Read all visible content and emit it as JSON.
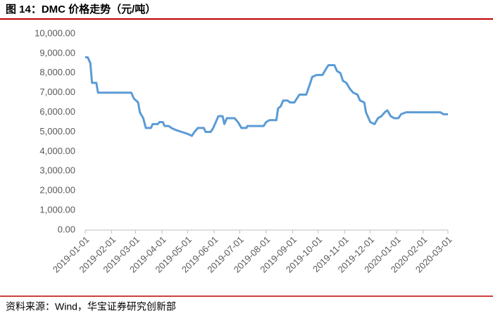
{
  "chart_data": {
    "type": "line",
    "title": "图 14：DMC 价格走势（元/吨）",
    "source": "资料来源：Wind，华宝证券研究创新部",
    "grid": false,
    "x": [
      "2019-01-01",
      "2019-01-04",
      "2019-01-07",
      "2019-01-09",
      "2019-01-14",
      "2019-01-16",
      "2019-02-24",
      "2019-02-27",
      "2019-03-04",
      "2019-03-06",
      "2019-03-10",
      "2019-03-13",
      "2019-03-19",
      "2019-03-21",
      "2019-03-27",
      "2019-03-29",
      "2019-04-02",
      "2019-04-04",
      "2019-04-09",
      "2019-04-12",
      "2019-04-17",
      "2019-04-24",
      "2019-05-01",
      "2019-05-06",
      "2019-05-09",
      "2019-05-13",
      "2019-05-20",
      "2019-05-22",
      "2019-05-28",
      "2019-05-31",
      "2019-06-03",
      "2019-06-06",
      "2019-06-11",
      "2019-06-13",
      "2019-06-16",
      "2019-06-25",
      "2019-06-29",
      "2019-07-03",
      "2019-07-09",
      "2019-07-10",
      "2019-07-29",
      "2019-08-01",
      "2019-08-05",
      "2019-08-13",
      "2019-08-15",
      "2019-08-18",
      "2019-08-21",
      "2019-08-26",
      "2019-08-29",
      "2019-09-03",
      "2019-09-06",
      "2019-09-09",
      "2019-09-17",
      "2019-09-21",
      "2019-09-24",
      "2019-09-29",
      "2019-10-06",
      "2019-10-10",
      "2019-10-13",
      "2019-10-20",
      "2019-10-23",
      "2019-10-27",
      "2019-10-30",
      "2019-11-03",
      "2019-11-07",
      "2019-11-11",
      "2019-11-16",
      "2019-11-19",
      "2019-11-24",
      "2019-11-26",
      "2019-12-01",
      "2019-12-06",
      "2019-12-10",
      "2019-12-14",
      "2019-12-18",
      "2019-12-21",
      "2019-12-25",
      "2019-12-29",
      "2020-01-03",
      "2020-01-06",
      "2020-01-12",
      "2020-02-21",
      "2020-02-25",
      "2020-03-01"
    ],
    "series": [
      {
        "name": "DMC",
        "color": "#5b9bd5",
        "values": [
          8800,
          8800,
          8500,
          7500,
          7500,
          7000,
          7000,
          6700,
          6500,
          6000,
          5700,
          5200,
          5200,
          5400,
          5400,
          5500,
          5500,
          5300,
          5300,
          5200,
          5100,
          5000,
          4900,
          4800,
          5000,
          5200,
          5200,
          5000,
          5000,
          5200,
          5500,
          5800,
          5800,
          5400,
          5700,
          5700,
          5500,
          5200,
          5200,
          5300,
          5300,
          5500,
          5600,
          5600,
          6200,
          6300,
          6600,
          6600,
          6500,
          6500,
          6700,
          6900,
          6900,
          7400,
          7800,
          7900,
          7900,
          8200,
          8400,
          8400,
          8100,
          8000,
          7600,
          7500,
          7200,
          7000,
          6900,
          6600,
          6500,
          6000,
          5500,
          5400,
          5700,
          5800,
          6000,
          6100,
          5800,
          5700,
          5700,
          5900,
          6000,
          6000,
          5900,
          5900
        ]
      }
    ],
    "xlim": [
      "2019-01-01",
      "2020-03-01"
    ],
    "xticks": [
      "2019-01-01",
      "2019-02-01",
      "2019-03-01",
      "2019-04-01",
      "2019-05-01",
      "2019-06-01",
      "2019-07-01",
      "2019-08-01",
      "2019-09-01",
      "2019-10-01",
      "2019-11-01",
      "2019-12-01",
      "2020-01-01",
      "2020-02-01",
      "2020-03-01"
    ],
    "ylim": [
      0,
      10000
    ],
    "yticks": [
      {
        "value": 0,
        "label": "0.00"
      },
      {
        "value": 1000,
        "label": "1,000.00"
      },
      {
        "value": 2000,
        "label": "2,000.00"
      },
      {
        "value": 3000,
        "label": "3,000.00"
      },
      {
        "value": 4000,
        "label": "4,000.00"
      },
      {
        "value": 5000,
        "label": "5,000.00"
      },
      {
        "value": 6000,
        "label": "6,000.00"
      },
      {
        "value": 7000,
        "label": "7,000.00"
      },
      {
        "value": 8000,
        "label": "8,000.00"
      },
      {
        "value": 9000,
        "label": "9,000.00"
      },
      {
        "value": 10000,
        "label": "10,000.00"
      }
    ]
  }
}
